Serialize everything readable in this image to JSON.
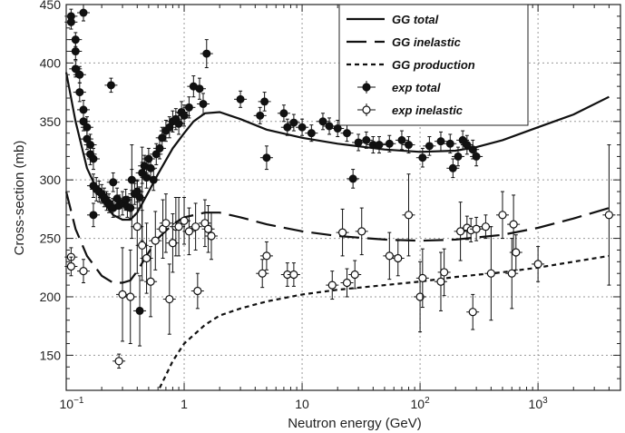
{
  "chart_data": {
    "type": "scatter",
    "xlabel": "Neutron energy (GeV)",
    "ylabel": "Cross-section (mb)",
    "xscale": "log",
    "xlim": [
      0.1,
      5000
    ],
    "ylim": [
      120,
      450
    ],
    "x_ticks": [
      {
        "value": 0.1,
        "base": "10",
        "exp": "−1"
      },
      {
        "value": 1,
        "base": "1",
        "exp": ""
      },
      {
        "value": 10,
        "base": "10",
        "exp": ""
      },
      {
        "value": 100,
        "base": "10",
        "exp": "2"
      },
      {
        "value": 1000,
        "base": "10",
        "exp": "3"
      }
    ],
    "y_ticks": [
      150,
      200,
      250,
      300,
      350,
      400,
      450
    ],
    "grid": "dotted",
    "legend_position": "top-right",
    "colors": {
      "line": "#111111",
      "marker": "#111111",
      "grid": "#9a9a9a"
    },
    "series": [
      {
        "name": "GG total",
        "kind": "line",
        "dash": "solid",
        "points": [
          [
            0.1,
            392
          ],
          [
            0.12,
            350
          ],
          [
            0.15,
            310
          ],
          [
            0.2,
            283
          ],
          [
            0.25,
            270
          ],
          [
            0.3,
            266
          ],
          [
            0.35,
            266
          ],
          [
            0.4,
            272
          ],
          [
            0.5,
            290
          ],
          [
            0.6,
            305
          ],
          [
            0.8,
            327
          ],
          [
            1,
            340
          ],
          [
            1.2,
            350
          ],
          [
            1.5,
            357
          ],
          [
            2,
            358
          ],
          [
            3,
            352
          ],
          [
            5,
            343
          ],
          [
            10,
            336
          ],
          [
            20,
            331
          ],
          [
            50,
            326
          ],
          [
            100,
            324
          ],
          [
            200,
            325
          ],
          [
            300,
            328
          ],
          [
            500,
            334
          ],
          [
            1000,
            345
          ],
          [
            2000,
            356
          ],
          [
            4000,
            371
          ]
        ]
      },
      {
        "name": "GG inelastic",
        "kind": "line",
        "dash": "long-dash",
        "points": [
          [
            0.1,
            290
          ],
          [
            0.12,
            258
          ],
          [
            0.15,
            235
          ],
          [
            0.2,
            218
          ],
          [
            0.25,
            212
          ],
          [
            0.3,
            212
          ],
          [
            0.35,
            214
          ],
          [
            0.4,
            222
          ],
          [
            0.5,
            238
          ],
          [
            0.6,
            250
          ],
          [
            0.8,
            262
          ],
          [
            1,
            268
          ],
          [
            1.5,
            272
          ],
          [
            2,
            272
          ],
          [
            3,
            268
          ],
          [
            5,
            262
          ],
          [
            10,
            256
          ],
          [
            20,
            252
          ],
          [
            50,
            249
          ],
          [
            100,
            248
          ],
          [
            200,
            249
          ],
          [
            500,
            253
          ],
          [
            1000,
            259
          ],
          [
            2000,
            267
          ],
          [
            4000,
            276
          ]
        ]
      },
      {
        "name": "GG production",
        "kind": "line",
        "dash": "short-dash",
        "points": [
          [
            0.62,
            122
          ],
          [
            0.7,
            133
          ],
          [
            0.8,
            145
          ],
          [
            1,
            160
          ],
          [
            1.5,
            176
          ],
          [
            2,
            184
          ],
          [
            3,
            190
          ],
          [
            5,
            196
          ],
          [
            10,
            202
          ],
          [
            20,
            206
          ],
          [
            50,
            210
          ],
          [
            100,
            213
          ],
          [
            200,
            217
          ],
          [
            500,
            221
          ],
          [
            1000,
            225
          ],
          [
            2000,
            230
          ],
          [
            4000,
            235
          ]
        ]
      },
      {
        "name": "exp total",
        "kind": "markers",
        "marker": "filled-circle",
        "points": [
          [
            0.11,
            440,
            6
          ],
          [
            0.11,
            435,
            6
          ],
          [
            0.12,
            420,
            6
          ],
          [
            0.12,
            410,
            7
          ],
          [
            0.12,
            395,
            7
          ],
          [
            0.13,
            390,
            7
          ],
          [
            0.14,
            443,
            7
          ],
          [
            0.13,
            375,
            8
          ],
          [
            0.14,
            360,
            8
          ],
          [
            0.14,
            350,
            8
          ],
          [
            0.15,
            345,
            9
          ],
          [
            0.15,
            335,
            9
          ],
          [
            0.16,
            330,
            9
          ],
          [
            0.16,
            322,
            9
          ],
          [
            0.17,
            318,
            9
          ],
          [
            0.17,
            295,
            10
          ],
          [
            0.18,
            292,
            10
          ],
          [
            0.19,
            290,
            9
          ],
          [
            0.2,
            288,
            8
          ],
          [
            0.21,
            285,
            8
          ],
          [
            0.22,
            282,
            8
          ],
          [
            0.23,
            280,
            8
          ],
          [
            0.25,
            298,
            8
          ],
          [
            0.25,
            276,
            8
          ],
          [
            0.27,
            284,
            9
          ],
          [
            0.28,
            278,
            9
          ],
          [
            0.3,
            280,
            10
          ],
          [
            0.32,
            283,
            9
          ],
          [
            0.33,
            277,
            9
          ],
          [
            0.35,
            276,
            9
          ],
          [
            0.36,
            300,
            9
          ],
          [
            0.38,
            288,
            9
          ],
          [
            0.4,
            290,
            9
          ],
          [
            0.42,
            285,
            9
          ],
          [
            0.44,
            306,
            9
          ],
          [
            0.46,
            312,
            9
          ],
          [
            0.48,
            302,
            9
          ],
          [
            0.5,
            318,
            9
          ],
          [
            0.52,
            310,
            9
          ],
          [
            0.55,
            300,
            9
          ],
          [
            0.58,
            322,
            9
          ],
          [
            0.62,
            327,
            9
          ],
          [
            0.65,
            336,
            9
          ],
          [
            0.7,
            342,
            9
          ],
          [
            0.75,
            345,
            9
          ],
          [
            0.8,
            350,
            9
          ],
          [
            0.85,
            352,
            9
          ],
          [
            0.9,
            348,
            9
          ],
          [
            0.95,
            358,
            9
          ],
          [
            1.0,
            355,
            9
          ],
          [
            1.1,
            362,
            9
          ],
          [
            1.2,
            380,
            9
          ],
          [
            1.35,
            378,
            9
          ],
          [
            1.45,
            365,
            9
          ],
          [
            1.55,
            408,
            12
          ],
          [
            0.24,
            381,
            6
          ],
          [
            0.17,
            270,
            10
          ],
          [
            0.42,
            188,
            30
          ],
          [
            3.0,
            369,
            7
          ],
          [
            4.4,
            355,
            7
          ],
          [
            4.8,
            367,
            8
          ],
          [
            5.0,
            319,
            10
          ],
          [
            7.0,
            357,
            7
          ],
          [
            7.5,
            345,
            7
          ],
          [
            8.5,
            349,
            7
          ],
          [
            10,
            345,
            7
          ],
          [
            12,
            340,
            7
          ],
          [
            15,
            350,
            7
          ],
          [
            17,
            346,
            7
          ],
          [
            20,
            344,
            7
          ],
          [
            24,
            340,
            7
          ],
          [
            27,
            301,
            8
          ],
          [
            30,
            332,
            7
          ],
          [
            35,
            334,
            7
          ],
          [
            40,
            330,
            7
          ],
          [
            45,
            330,
            7
          ],
          [
            55,
            331,
            7
          ],
          [
            70,
            334,
            8
          ],
          [
            80,
            330,
            7
          ],
          [
            105,
            319,
            8
          ],
          [
            120,
            329,
            8
          ],
          [
            150,
            333,
            8
          ],
          [
            180,
            331,
            8
          ],
          [
            190,
            310,
            8
          ],
          [
            210,
            320,
            8
          ],
          [
            230,
            334,
            8
          ],
          [
            250,
            330,
            8
          ],
          [
            280,
            326,
            8
          ],
          [
            300,
            320,
            8
          ]
        ]
      },
      {
        "name": "exp inelastic",
        "kind": "markers",
        "marker": "open-circle",
        "points": [
          [
            0.11,
            234,
            8
          ],
          [
            0.11,
            226,
            8
          ],
          [
            0.14,
            222,
            10
          ],
          [
            0.28,
            145,
            6
          ],
          [
            0.3,
            202,
            40
          ],
          [
            0.35,
            200,
            40
          ],
          [
            0.4,
            260,
            40
          ],
          [
            0.44,
            244,
            30
          ],
          [
            0.48,
            233,
            30
          ],
          [
            0.52,
            213,
            30
          ],
          [
            0.57,
            248,
            25
          ],
          [
            0.66,
            258,
            25
          ],
          [
            0.7,
            263,
            25
          ],
          [
            0.75,
            198,
            30
          ],
          [
            0.8,
            246,
            25
          ],
          [
            0.85,
            260,
            25
          ],
          [
            0.9,
            260,
            25
          ],
          [
            1.0,
            265,
            20
          ],
          [
            1.1,
            256,
            20
          ],
          [
            1.25,
            260,
            20
          ],
          [
            1.3,
            205,
            15
          ],
          [
            1.5,
            263,
            20
          ],
          [
            1.6,
            258,
            20
          ],
          [
            1.7,
            252,
            20
          ],
          [
            4.6,
            220,
            12
          ],
          [
            5.0,
            235,
            12
          ],
          [
            7.5,
            219,
            10
          ],
          [
            8.5,
            219,
            10
          ],
          [
            18,
            210,
            12
          ],
          [
            22,
            255,
            20
          ],
          [
            24,
            212,
            12
          ],
          [
            28,
            219,
            12
          ],
          [
            32,
            256,
            20
          ],
          [
            55,
            235,
            20
          ],
          [
            65,
            233,
            15
          ],
          [
            80,
            270,
            35
          ],
          [
            100,
            200,
            30
          ],
          [
            105,
            216,
            25
          ],
          [
            150,
            213,
            25
          ],
          [
            160,
            221,
            20
          ],
          [
            220,
            256,
            25
          ],
          [
            250,
            259,
            10
          ],
          [
            270,
            257,
            10
          ],
          [
            300,
            258,
            10
          ],
          [
            360,
            260,
            10
          ],
          [
            400,
            220,
            40
          ],
          [
            500,
            270,
            20
          ],
          [
            280,
            187,
            15
          ],
          [
            600,
            220,
            30
          ],
          [
            620,
            262,
            25
          ],
          [
            650,
            238,
            15
          ],
          [
            1000,
            228,
            15
          ],
          [
            4000,
            270,
            60
          ]
        ]
      },
      {
        "name": "",
        "kind": "markers",
        "marker": "plain-bar",
        "points": [
          [
            0.36,
            290,
            40
          ],
          [
            0.44,
            288,
            40
          ]
        ]
      }
    ]
  }
}
